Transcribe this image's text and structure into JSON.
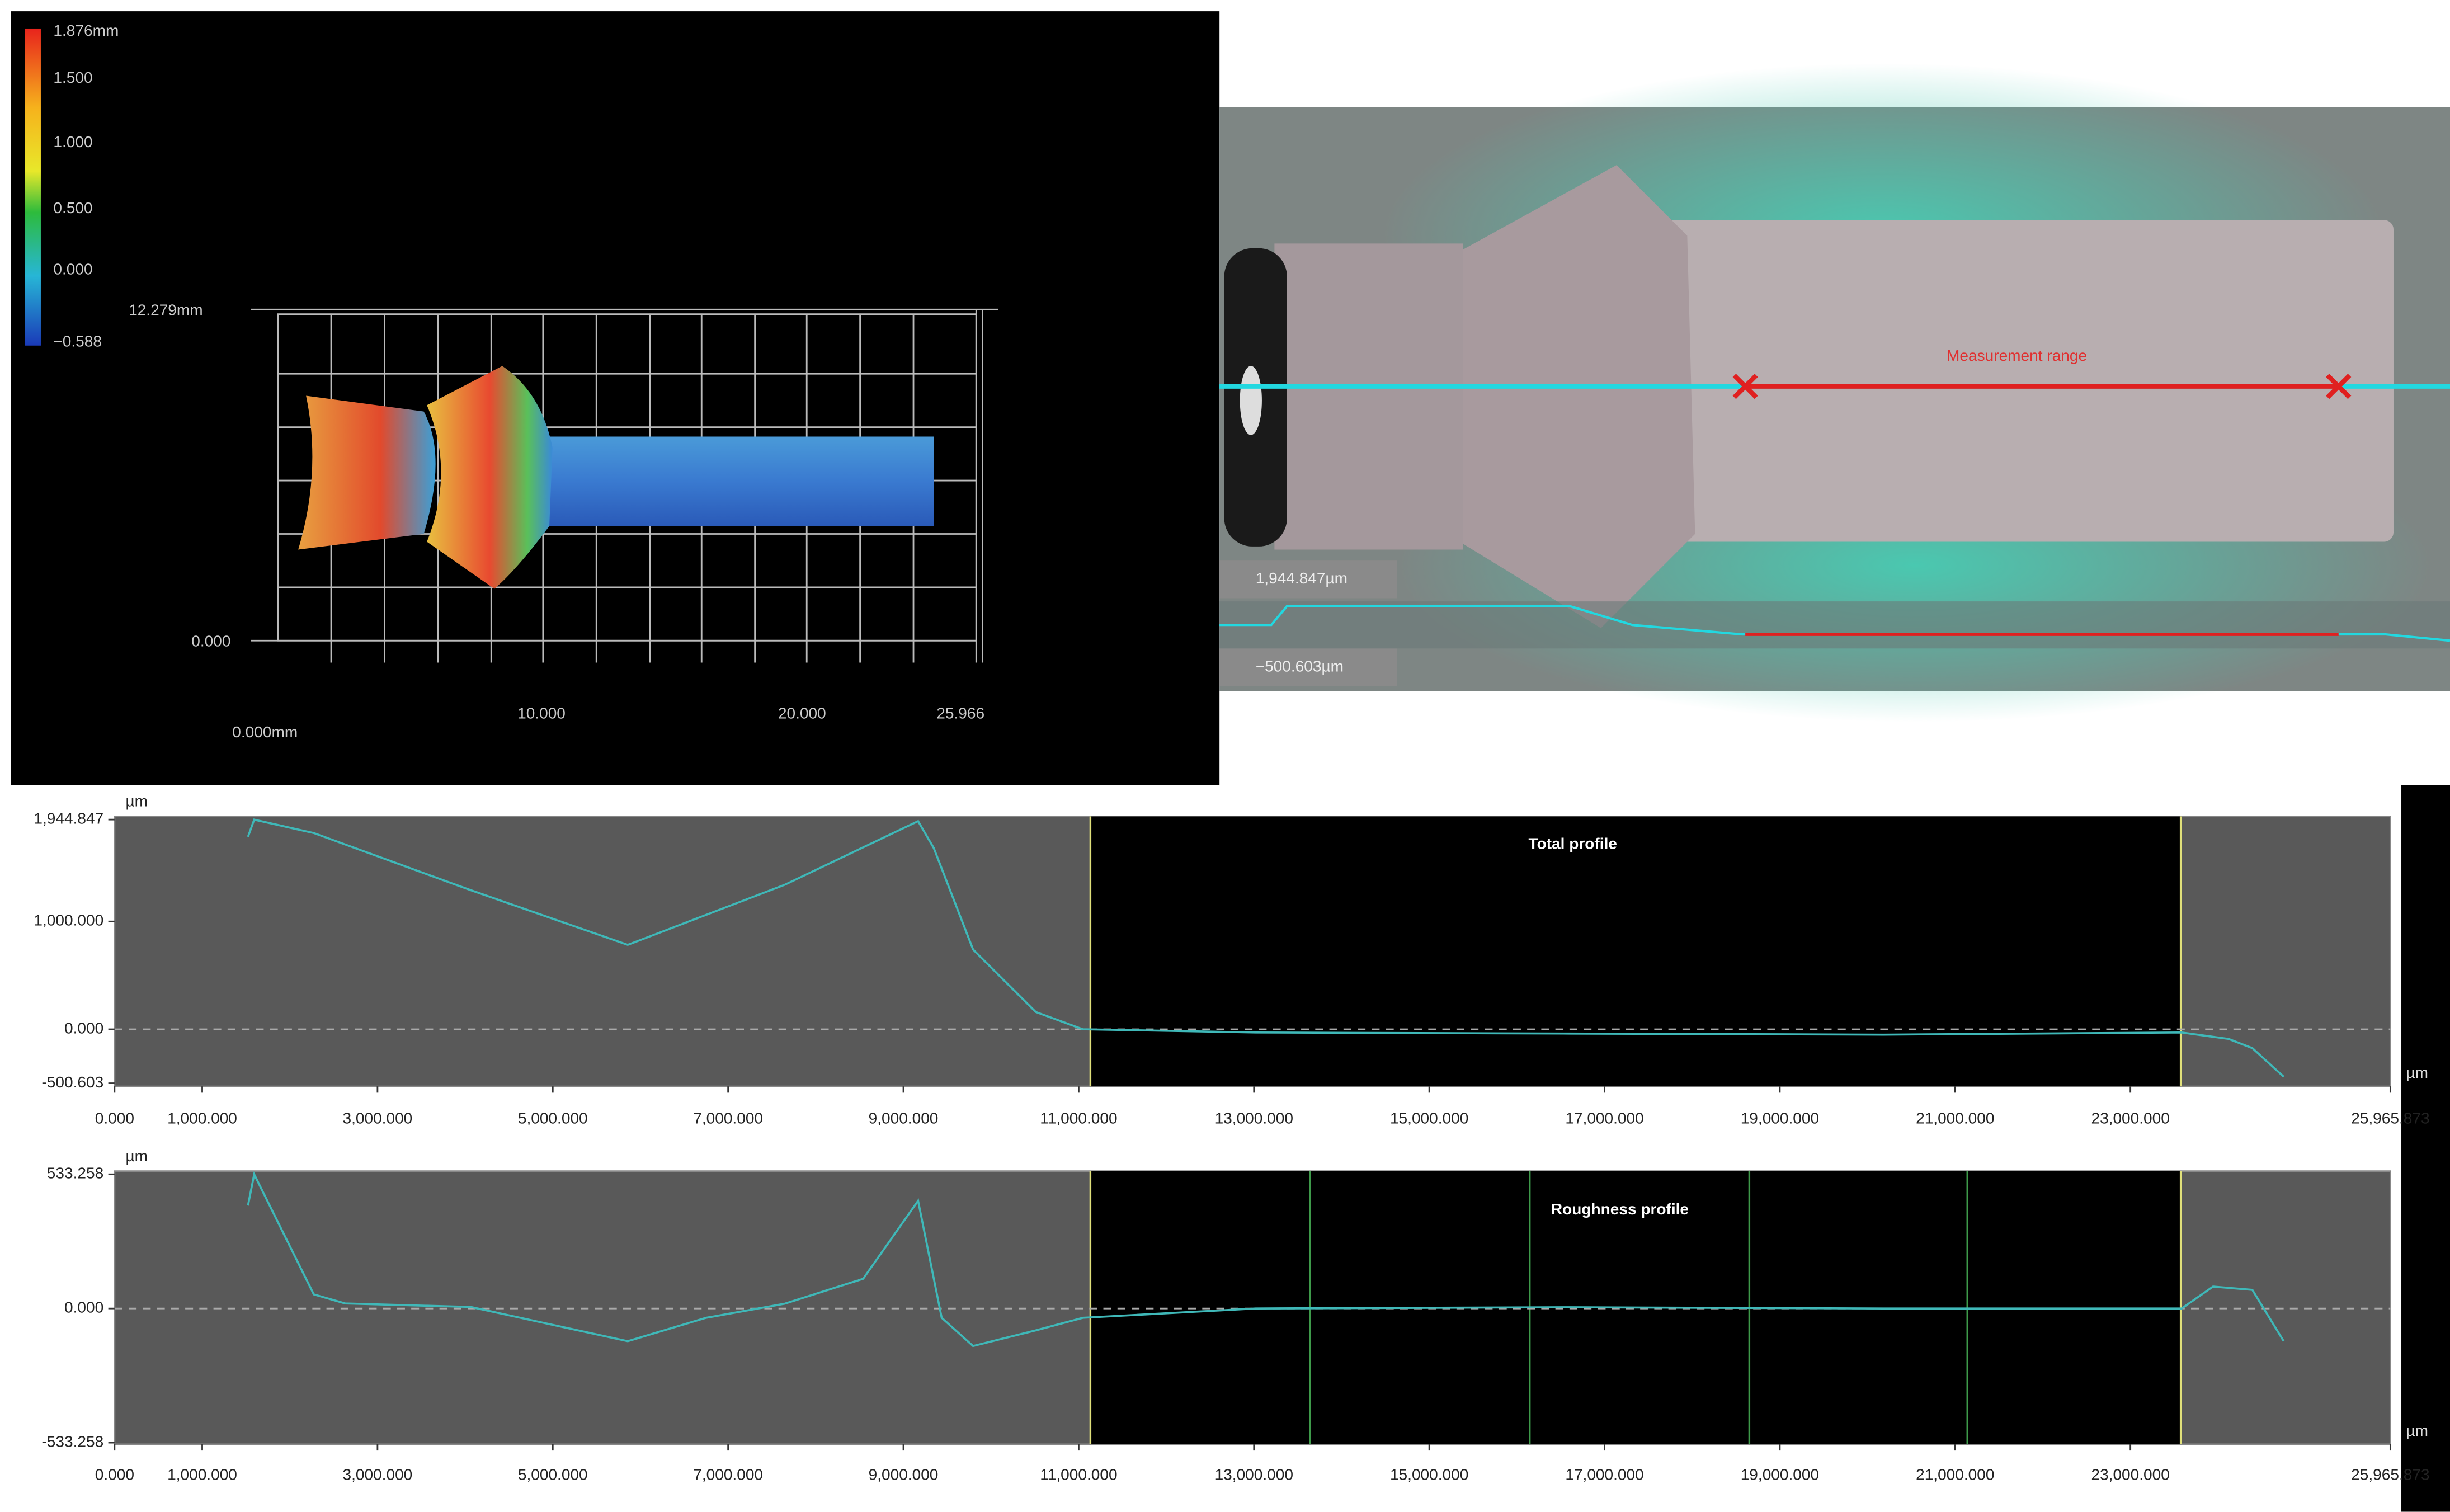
{
  "view3d": {
    "colorbar_labels": [
      "1.876mm",
      "1.500",
      "1.000",
      "0.500",
      "0.000",
      "−0.588"
    ],
    "axis_labels": {
      "z_top": "12.279mm",
      "z_bottom": "0.000",
      "x_origin": "0.000mm",
      "x_mid1": "10.000",
      "x_mid2": "20.000",
      "x_end": "25.966"
    }
  },
  "micrograph": {
    "annotation": "Measurement range",
    "upper_label": "1,944.847µm",
    "lower_label": "−500.603µm"
  },
  "chart_data": [
    {
      "type": "line",
      "title": "Total profile",
      "y_unit": "µm",
      "x_unit": "µm",
      "color": "#3fb8b8",
      "x": [
        1522,
        1593,
        2273,
        4064,
        5855,
        7646,
        9168,
        9347,
        9795,
        10511,
        11048,
        13018,
        16600,
        20182,
        23585,
        24122,
        24391,
        24749
      ],
      "values": [
        1785,
        1944,
        1820,
        1290,
        783,
        1340,
        1930,
        1680,
        740,
        160,
        0,
        -30,
        -40,
        -50,
        -30,
        -90,
        -175,
        -440
      ],
      "xlim": [
        0,
        25965.873
      ],
      "xticks": [
        {
          "value": 0,
          "label": "0.000"
        },
        {
          "value": 1000,
          "label": "1,000.000"
        },
        {
          "value": 3000,
          "label": "3,000.000"
        },
        {
          "value": 5000,
          "label": "5,000.000"
        },
        {
          "value": 7000,
          "label": "7,000.000"
        },
        {
          "value": 9000,
          "label": "9,000.000"
        },
        {
          "value": 11000,
          "label": "11,000.000"
        },
        {
          "value": 13000,
          "label": "13,000.000"
        },
        {
          "value": 15000,
          "label": "15,000.000"
        },
        {
          "value": 17000,
          "label": "17,000.000"
        },
        {
          "value": 19000,
          "label": "19,000.000"
        },
        {
          "value": 21000,
          "label": "21,000.000"
        },
        {
          "value": 23000,
          "label": "23,000.000"
        },
        {
          "value": 25965.873,
          "label": "25,965.873"
        }
      ],
      "ylim": [
        -500.603,
        1944.847
      ],
      "yticks": [
        {
          "value": -500.603,
          "label": "-500.603"
        },
        {
          "value": 0,
          "label": "0.000"
        },
        {
          "value": 1000,
          "label": "1,000.000"
        },
        {
          "value": 1944.847,
          "label": "1,944.847"
        }
      ],
      "baseline": 0,
      "range": [
        11134,
        23574
      ],
      "segment_lines": []
    },
    {
      "type": "line",
      "title": "Roughness profile",
      "y_unit": "µm",
      "x_unit": "µm",
      "color": "#3fb8b8",
      "x": [
        1522,
        1593,
        2273,
        2631,
        4064,
        5855,
        6750,
        7646,
        8541,
        9168,
        9437,
        9795,
        10511,
        11048,
        13018,
        16600,
        20182,
        23585,
        23943,
        24391,
        24749
      ],
      "values": [
        409,
        533,
        56,
        20,
        6,
        -130,
        -37,
        19,
        118,
        428,
        -37,
        -149,
        -87,
        -37,
        0,
        5,
        0,
        0,
        87,
        74,
        -130
      ],
      "xlim": [
        0,
        25965.873
      ],
      "xticks": [
        {
          "value": 0,
          "label": "0.000"
        },
        {
          "value": 1000,
          "label": "1,000.000"
        },
        {
          "value": 3000,
          "label": "3,000.000"
        },
        {
          "value": 5000,
          "label": "5,000.000"
        },
        {
          "value": 7000,
          "label": "7,000.000"
        },
        {
          "value": 9000,
          "label": "9,000.000"
        },
        {
          "value": 11000,
          "label": "11,000.000"
        },
        {
          "value": 13000,
          "label": "13,000.000"
        },
        {
          "value": 15000,
          "label": "15,000.000"
        },
        {
          "value": 17000,
          "label": "17,000.000"
        },
        {
          "value": 19000,
          "label": "19,000.000"
        },
        {
          "value": 21000,
          "label": "21,000.000"
        },
        {
          "value": 23000,
          "label": "23,000.000"
        },
        {
          "value": 25965.873,
          "label": "25,965.873"
        }
      ],
      "ylim": [
        -533.258,
        533.258
      ],
      "yticks": [
        {
          "value": -533.258,
          "label": "-533.258"
        },
        {
          "value": 0,
          "label": "0.000"
        },
        {
          "value": 533.258,
          "label": "533.258"
        }
      ],
      "baseline": 0,
      "range": [
        11134,
        23574
      ],
      "segment_lines": [
        13640,
        16146,
        18652,
        21140
      ]
    }
  ]
}
